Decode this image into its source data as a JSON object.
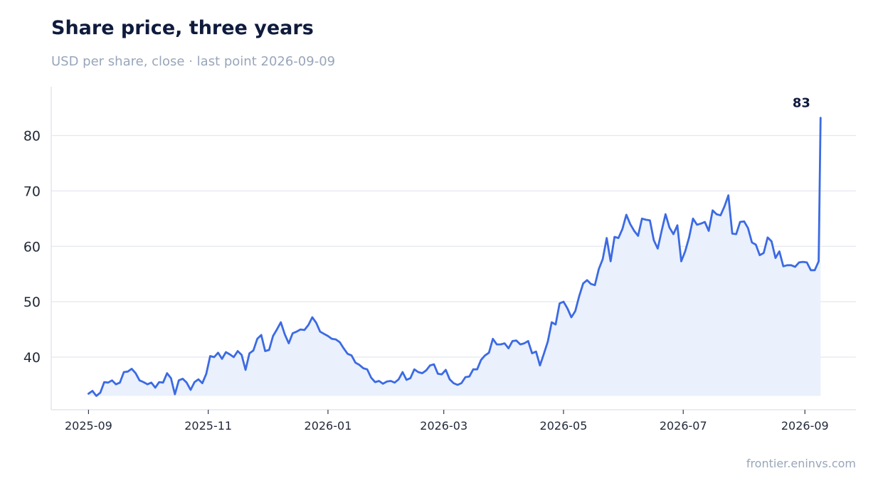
{
  "header": {
    "title": "Share price, three years",
    "subtitle": "USD per share, close · last point 2026-09-09"
  },
  "footer": {
    "source": "frontier.eninvs.com"
  },
  "colors": {
    "line": "#3b6ae3",
    "area": "#eaf0fc",
    "grid": "#e3e7f0",
    "axis": "#e1e5ee",
    "label_dark": "#0f1b3d"
  },
  "chart_data": {
    "type": "area",
    "title": "Share price, three years",
    "subtitle": "USD per share, close · last point 2026-09-09",
    "xlabel": "",
    "ylabel": "",
    "x_ticks": [
      "2025-09",
      "2025-11",
      "2026-01",
      "2026-03",
      "2026-05",
      "2026-07",
      "2026-09"
    ],
    "y_ticks": [
      40,
      50,
      60,
      70,
      80
    ],
    "xlim": [
      "2025-08-13",
      "2026-09-27"
    ],
    "ylim": [
      30.5,
      88.8
    ],
    "grid": "horizontal",
    "end_label": "83",
    "series": [
      {
        "points": [
          [
            "2025-09-01",
            33.4
          ],
          [
            "2025-09-03",
            33.9
          ],
          [
            "2025-09-05",
            33.0
          ],
          [
            "2025-09-07",
            33.6
          ],
          [
            "2025-09-09",
            35.5
          ],
          [
            "2025-09-11",
            35.4
          ],
          [
            "2025-09-13",
            35.8
          ],
          [
            "2025-09-15",
            35.1
          ],
          [
            "2025-09-17",
            35.4
          ],
          [
            "2025-09-19",
            37.3
          ],
          [
            "2025-09-21",
            37.4
          ],
          [
            "2025-09-23",
            37.9
          ],
          [
            "2025-09-25",
            37.1
          ],
          [
            "2025-09-27",
            35.8
          ],
          [
            "2025-09-29",
            35.5
          ],
          [
            "2025-10-01",
            35.1
          ],
          [
            "2025-10-03",
            35.4
          ],
          [
            "2025-10-05",
            34.5
          ],
          [
            "2025-10-07",
            35.5
          ],
          [
            "2025-10-09",
            35.4
          ],
          [
            "2025-10-11",
            37.1
          ],
          [
            "2025-10-13",
            36.2
          ],
          [
            "2025-10-15",
            33.3
          ],
          [
            "2025-10-17",
            35.8
          ],
          [
            "2025-10-19",
            36.1
          ],
          [
            "2025-10-21",
            35.4
          ],
          [
            "2025-10-23",
            34.1
          ],
          [
            "2025-10-25",
            35.5
          ],
          [
            "2025-10-27",
            36.0
          ],
          [
            "2025-10-29",
            35.3
          ],
          [
            "2025-10-31",
            37.0
          ],
          [
            "2025-11-02",
            40.2
          ],
          [
            "2025-11-04",
            40.0
          ],
          [
            "2025-11-06",
            40.8
          ],
          [
            "2025-11-08",
            39.7
          ],
          [
            "2025-11-10",
            40.9
          ],
          [
            "2025-11-12",
            40.5
          ],
          [
            "2025-11-14",
            40.0
          ],
          [
            "2025-11-16",
            41.1
          ],
          [
            "2025-11-18",
            40.4
          ],
          [
            "2025-11-20",
            37.7
          ],
          [
            "2025-11-22",
            40.7
          ],
          [
            "2025-11-24",
            41.2
          ],
          [
            "2025-11-26",
            43.3
          ],
          [
            "2025-11-28",
            44.0
          ],
          [
            "2025-11-30",
            41.1
          ],
          [
            "2025-12-02",
            41.3
          ],
          [
            "2025-12-04",
            43.8
          ],
          [
            "2025-12-06",
            45.0
          ],
          [
            "2025-12-08",
            46.3
          ],
          [
            "2025-12-10",
            44.1
          ],
          [
            "2025-12-12",
            42.5
          ],
          [
            "2025-12-14",
            44.3
          ],
          [
            "2025-12-16",
            44.6
          ],
          [
            "2025-12-18",
            45.0
          ],
          [
            "2025-12-20",
            44.9
          ],
          [
            "2025-12-22",
            45.8
          ],
          [
            "2025-12-24",
            47.2
          ],
          [
            "2025-12-26",
            46.2
          ],
          [
            "2025-12-28",
            44.6
          ],
          [
            "2025-12-30",
            44.2
          ],
          [
            "2026-01-01",
            43.8
          ],
          [
            "2026-01-03",
            43.3
          ],
          [
            "2026-01-05",
            43.2
          ],
          [
            "2026-01-07",
            42.7
          ],
          [
            "2026-01-09",
            41.6
          ],
          [
            "2026-01-11",
            40.6
          ],
          [
            "2026-01-13",
            40.3
          ],
          [
            "2026-01-15",
            39.0
          ],
          [
            "2026-01-17",
            38.6
          ],
          [
            "2026-01-19",
            38.0
          ],
          [
            "2026-01-21",
            37.8
          ],
          [
            "2026-01-23",
            36.3
          ],
          [
            "2026-01-25",
            35.5
          ],
          [
            "2026-01-27",
            35.7
          ],
          [
            "2026-01-29",
            35.2
          ],
          [
            "2026-01-31",
            35.6
          ],
          [
            "2026-02-02",
            35.7
          ],
          [
            "2026-02-04",
            35.4
          ],
          [
            "2026-02-06",
            36.0
          ],
          [
            "2026-02-08",
            37.3
          ],
          [
            "2026-02-10",
            35.9
          ],
          [
            "2026-02-12",
            36.2
          ],
          [
            "2026-02-14",
            37.8
          ],
          [
            "2026-02-16",
            37.3
          ],
          [
            "2026-02-18",
            37.1
          ],
          [
            "2026-02-20",
            37.6
          ],
          [
            "2026-02-22",
            38.5
          ],
          [
            "2026-02-24",
            38.7
          ],
          [
            "2026-02-26",
            37.0
          ],
          [
            "2026-02-28",
            36.9
          ],
          [
            "2026-03-02",
            37.7
          ],
          [
            "2026-03-04",
            36.0
          ],
          [
            "2026-03-06",
            35.3
          ],
          [
            "2026-03-08",
            35.0
          ],
          [
            "2026-03-10",
            35.3
          ],
          [
            "2026-03-12",
            36.4
          ],
          [
            "2026-03-14",
            36.5
          ],
          [
            "2026-03-16",
            37.8
          ],
          [
            "2026-03-18",
            37.8
          ],
          [
            "2026-03-20",
            39.5
          ],
          [
            "2026-03-22",
            40.3
          ],
          [
            "2026-03-24",
            40.8
          ],
          [
            "2026-03-26",
            43.3
          ],
          [
            "2026-03-28",
            42.3
          ],
          [
            "2026-03-30",
            42.3
          ],
          [
            "2026-04-01",
            42.5
          ],
          [
            "2026-04-03",
            41.6
          ],
          [
            "2026-04-05",
            42.9
          ],
          [
            "2026-04-07",
            43.0
          ],
          [
            "2026-04-09",
            42.3
          ],
          [
            "2026-04-11",
            42.5
          ],
          [
            "2026-04-13",
            42.9
          ],
          [
            "2026-04-15",
            40.7
          ],
          [
            "2026-04-17",
            41.0
          ],
          [
            "2026-04-19",
            38.5
          ],
          [
            "2026-04-21",
            40.6
          ],
          [
            "2026-04-23",
            42.8
          ],
          [
            "2026-04-25",
            46.3
          ],
          [
            "2026-04-27",
            45.9
          ],
          [
            "2026-04-29",
            49.7
          ],
          [
            "2026-05-01",
            50.0
          ],
          [
            "2026-05-03",
            48.8
          ],
          [
            "2026-05-05",
            47.2
          ],
          [
            "2026-05-07",
            48.3
          ],
          [
            "2026-05-09",
            51.0
          ],
          [
            "2026-05-11",
            53.3
          ],
          [
            "2026-05-13",
            53.9
          ],
          [
            "2026-05-15",
            53.2
          ],
          [
            "2026-05-17",
            53.0
          ],
          [
            "2026-05-19",
            55.9
          ],
          [
            "2026-05-21",
            57.7
          ],
          [
            "2026-05-23",
            61.5
          ],
          [
            "2026-05-25",
            57.3
          ],
          [
            "2026-05-27",
            61.7
          ],
          [
            "2026-05-29",
            61.5
          ],
          [
            "2026-05-31",
            63.1
          ],
          [
            "2026-06-02",
            65.7
          ],
          [
            "2026-06-04",
            64.0
          ],
          [
            "2026-06-06",
            62.8
          ],
          [
            "2026-06-08",
            61.9
          ],
          [
            "2026-06-10",
            65.0
          ],
          [
            "2026-06-12",
            64.8
          ],
          [
            "2026-06-14",
            64.7
          ],
          [
            "2026-06-16",
            61.1
          ],
          [
            "2026-06-18",
            59.6
          ],
          [
            "2026-06-20",
            62.8
          ],
          [
            "2026-06-22",
            65.8
          ],
          [
            "2026-06-24",
            63.4
          ],
          [
            "2026-06-26",
            62.2
          ],
          [
            "2026-06-28",
            63.8
          ],
          [
            "2026-06-30",
            57.3
          ],
          [
            "2026-07-02",
            59.1
          ],
          [
            "2026-07-04",
            61.6
          ],
          [
            "2026-07-06",
            65.0
          ],
          [
            "2026-07-08",
            63.9
          ],
          [
            "2026-07-10",
            64.1
          ],
          [
            "2026-07-12",
            64.4
          ],
          [
            "2026-07-14",
            62.8
          ],
          [
            "2026-07-16",
            66.5
          ],
          [
            "2026-07-18",
            65.8
          ],
          [
            "2026-07-20",
            65.6
          ],
          [
            "2026-07-22",
            67.2
          ],
          [
            "2026-07-24",
            69.2
          ],
          [
            "2026-07-26",
            62.3
          ],
          [
            "2026-07-28",
            62.2
          ],
          [
            "2026-07-30",
            64.4
          ],
          [
            "2026-08-01",
            64.5
          ],
          [
            "2026-08-03",
            63.3
          ],
          [
            "2026-08-05",
            60.7
          ],
          [
            "2026-08-07",
            60.3
          ],
          [
            "2026-08-09",
            58.4
          ],
          [
            "2026-08-11",
            58.8
          ],
          [
            "2026-08-13",
            61.6
          ],
          [
            "2026-08-15",
            60.9
          ],
          [
            "2026-08-17",
            57.9
          ],
          [
            "2026-08-19",
            59.1
          ],
          [
            "2026-08-21",
            56.4
          ],
          [
            "2026-08-23",
            56.6
          ],
          [
            "2026-08-25",
            56.6
          ],
          [
            "2026-08-27",
            56.3
          ],
          [
            "2026-08-29",
            57.1
          ],
          [
            "2026-08-31",
            57.2
          ],
          [
            "2026-09-02",
            57.1
          ],
          [
            "2026-09-04",
            55.7
          ],
          [
            "2026-09-06",
            55.7
          ],
          [
            "2026-09-08",
            57.3
          ],
          [
            "2026-09-09",
            83.2
          ]
        ]
      }
    ]
  }
}
